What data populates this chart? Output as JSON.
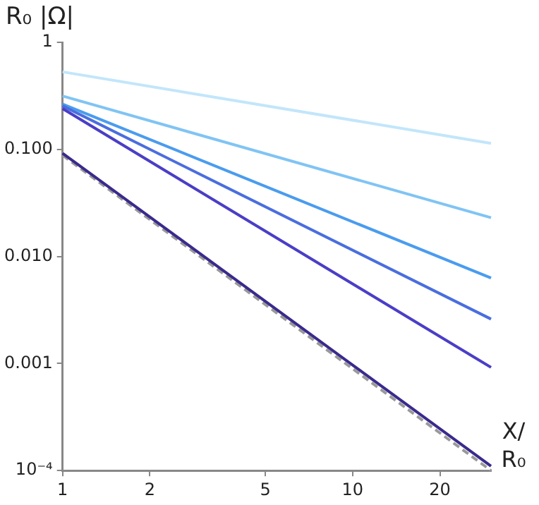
{
  "chart_data": {
    "type": "line",
    "xlabel": "X/R₀",
    "ylabel": "R₀ |Ω|",
    "log": "xy",
    "grid": false,
    "legend": false,
    "marker": "none",
    "x": [
      1,
      30
    ],
    "xlim": [
      1,
      30
    ],
    "xticks": [
      1,
      2,
      5,
      10,
      20
    ],
    "ylim": [
      0.0001,
      1
    ],
    "yticks": [
      1,
      {
        "value": 0.1,
        "label": "0.100"
      },
      {
        "value": 0.01,
        "label": "0.010"
      },
      0.001,
      {
        "value": 0.0001,
        "label": "10⁻⁴"
      }
    ],
    "series": [
      {
        "color": "#c2e6fa",
        "values": [
          0.53,
          0.114
        ]
      },
      {
        "color": "#80c4f4",
        "values": [
          0.315,
          0.023
        ]
      },
      {
        "color": "#4a9cee",
        "values": [
          0.265,
          0.0063
        ]
      },
      {
        "color": "#4a6ede",
        "values": [
          0.255,
          0.0026
        ]
      },
      {
        "color": "#4a3ec6",
        "values": [
          0.24,
          0.00092
        ]
      },
      {
        "color": "#999999",
        "line_style": "dashed",
        "values": [
          0.088,
          0.0001
        ]
      },
      {
        "color": "#3a2a8c",
        "values": [
          0.092,
          0.00011
        ]
      }
    ]
  }
}
